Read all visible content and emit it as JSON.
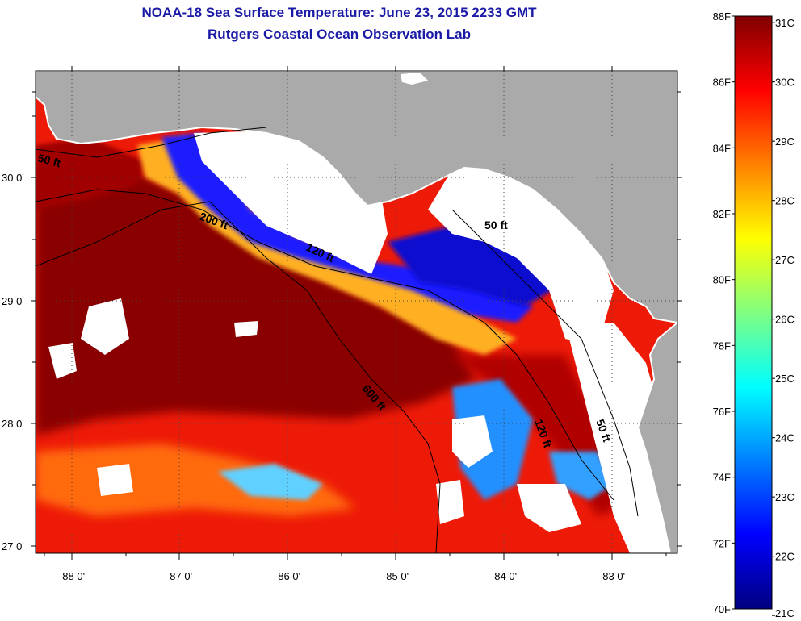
{
  "title": "NOAA-18 Sea Surface Temperature:  June 23, 2015 2233 GMT",
  "subtitle": "Rutgers Coastal Ocean Observation Lab",
  "map": {
    "lon_labels": [
      "-88 0'",
      "-87 0'",
      "-86 0'",
      "-85 0'",
      "-84 0'",
      "-83 0'"
    ],
    "lat_labels": [
      "30 0'",
      "29 0'",
      "28 0'",
      "27 0'"
    ],
    "contour_labels": [
      "50 ft",
      "200 ft",
      "120 ft",
      "600 ft",
      "50 ft",
      "120 ft",
      "50 ft"
    ]
  },
  "colorbar": {
    "f_labels": [
      "88F",
      "86F",
      "84F",
      "82F",
      "80F",
      "78F",
      "76F",
      "74F",
      "72F",
      "70F"
    ],
    "c_labels": [
      "31C",
      "30C",
      "29C",
      "28C",
      "27C",
      "26C",
      "25C",
      "24C",
      "23C",
      "22C",
      "21C"
    ],
    "colors": [
      "#000080",
      "#0000ff",
      "#0080ff",
      "#00ffff",
      "#80ff80",
      "#ffff00",
      "#ff8000",
      "#ff0000",
      "#800000"
    ]
  }
}
